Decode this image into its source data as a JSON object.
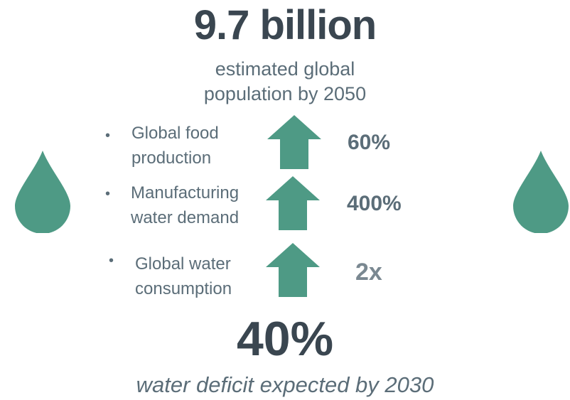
{
  "headline": "9.7 billion",
  "subhead": {
    "line1": "estimated global",
    "line2": "population by 2050"
  },
  "rows": [
    {
      "bullet": "•",
      "label_line1": "Global food",
      "label_line2": "production",
      "icon": "up-arrow-icon",
      "value": "60%"
    },
    {
      "bullet": "•",
      "label_line1": "Manufacturing",
      "label_line2": "water demand",
      "icon": "up-arrow-icon",
      "value": "400%"
    },
    {
      "bullet": "•",
      "label_line1": "Global water",
      "label_line2": "consumption",
      "icon": "up-arrow-icon",
      "value": "2x"
    }
  ],
  "big_stat": "40%",
  "footer": "water deficit expected by 2030",
  "colors": {
    "accent": "#4e9a85",
    "heading": "#3a4650",
    "text": "#5b6d78"
  },
  "icons": {
    "left": "water-drop-icon",
    "right": "water-drop-icon"
  }
}
